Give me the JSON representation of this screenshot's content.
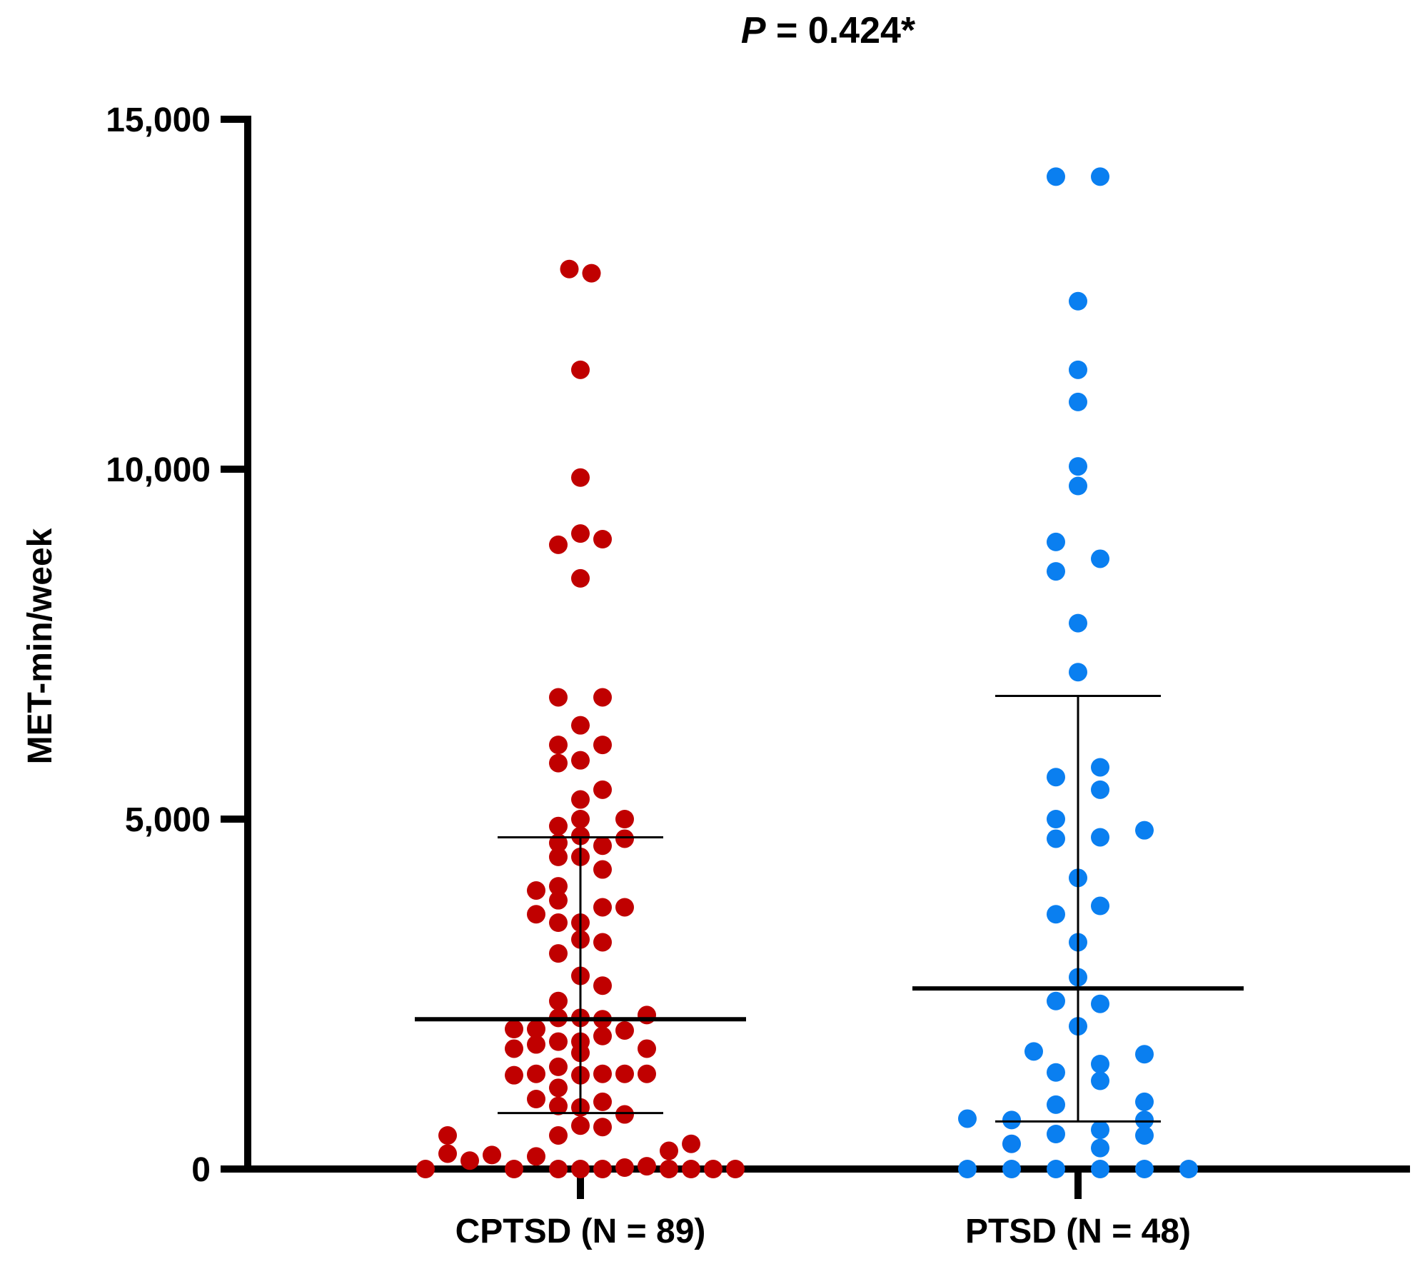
{
  "chart_data": {
    "type": "scatter",
    "subtype": "dot-plot",
    "title_italic": "P",
    "title_rest": " = 0.424*",
    "ylabel": "MET-min/week",
    "xlabel": "",
    "ylim": [
      0,
      15000
    ],
    "y_ticks": [
      0,
      5000,
      10000,
      15000
    ],
    "y_tick_labels": [
      "0",
      "5,000",
      "10,000",
      "15,000"
    ],
    "grid": false,
    "series": [
      {
        "name": "CPTSD",
        "label": "CPTSD (N = 89)",
        "color": "#c00000",
        "median": 2140,
        "q1": 800,
        "q3": 4740,
        "points": [
          {
            "y": 12860,
            "dx": -0.5
          },
          {
            "y": 12800,
            "dx": 0.5
          },
          {
            "y": 11420,
            "dx": 0
          },
          {
            "y": 9880,
            "dx": 0
          },
          {
            "y": 9080,
            "dx": 0
          },
          {
            "y": 9000,
            "dx": 1
          },
          {
            "y": 8920,
            "dx": -1
          },
          {
            "y": 8440,
            "dx": 0
          },
          {
            "y": 6740,
            "dx": -1
          },
          {
            "y": 6740,
            "dx": 1
          },
          {
            "y": 6340,
            "dx": 0
          },
          {
            "y": 6060,
            "dx": -1
          },
          {
            "y": 6060,
            "dx": 1
          },
          {
            "y": 5800,
            "dx": -1
          },
          {
            "y": 5840,
            "dx": 0
          },
          {
            "y": 5420,
            "dx": 1
          },
          {
            "y": 5280,
            "dx": 0
          },
          {
            "y": 5000,
            "dx": 2
          },
          {
            "y": 5000,
            "dx": 0
          },
          {
            "y": 4900,
            "dx": -1
          },
          {
            "y": 4760,
            "dx": 0
          },
          {
            "y": 4720,
            "dx": 2
          },
          {
            "y": 4660,
            "dx": -1
          },
          {
            "y": 4620,
            "dx": 1
          },
          {
            "y": 4460,
            "dx": -1
          },
          {
            "y": 4460,
            "dx": 0
          },
          {
            "y": 4280,
            "dx": 1
          },
          {
            "y": 4040,
            "dx": -1
          },
          {
            "y": 3980,
            "dx": -2
          },
          {
            "y": 3840,
            "dx": -1
          },
          {
            "y": 3740,
            "dx": 1
          },
          {
            "y": 3740,
            "dx": 2
          },
          {
            "y": 3640,
            "dx": -2
          },
          {
            "y": 3520,
            "dx": -1
          },
          {
            "y": 3520,
            "dx": 0
          },
          {
            "y": 3280,
            "dx": 0
          },
          {
            "y": 3240,
            "dx": 1
          },
          {
            "y": 3080,
            "dx": -1
          },
          {
            "y": 2760,
            "dx": 0
          },
          {
            "y": 2620,
            "dx": 1
          },
          {
            "y": 2400,
            "dx": -1
          },
          {
            "y": 2200,
            "dx": 3
          },
          {
            "y": 2160,
            "dx": -1
          },
          {
            "y": 2160,
            "dx": 0
          },
          {
            "y": 2140,
            "dx": 1
          },
          {
            "y": 2000,
            "dx": -2
          },
          {
            "y": 2000,
            "dx": -3
          },
          {
            "y": 1980,
            "dx": 2
          },
          {
            "y": 1900,
            "dx": 1
          },
          {
            "y": 1820,
            "dx": 0
          },
          {
            "y": 1820,
            "dx": -1
          },
          {
            "y": 1780,
            "dx": -2
          },
          {
            "y": 1720,
            "dx": -3
          },
          {
            "y": 1720,
            "dx": 3
          },
          {
            "y": 1660,
            "dx": 0
          },
          {
            "y": 1460,
            "dx": -1
          },
          {
            "y": 1360,
            "dx": 1
          },
          {
            "y": 1360,
            "dx": 2
          },
          {
            "y": 1360,
            "dx": -2
          },
          {
            "y": 1360,
            "dx": 3
          },
          {
            "y": 1340,
            "dx": -3
          },
          {
            "y": 1340,
            "dx": 0
          },
          {
            "y": 1160,
            "dx": -1
          },
          {
            "y": 1000,
            "dx": -2
          },
          {
            "y": 960,
            "dx": 1
          },
          {
            "y": 900,
            "dx": -1
          },
          {
            "y": 880,
            "dx": 0
          },
          {
            "y": 780,
            "dx": 2
          },
          {
            "y": 620,
            "dx": 0
          },
          {
            "y": 600,
            "dx": 1
          },
          {
            "y": 480,
            "dx": -1
          },
          {
            "y": 480,
            "dx": -6
          },
          {
            "y": 360,
            "dx": 5
          },
          {
            "y": 260,
            "dx": 4
          },
          {
            "y": 220,
            "dx": -6
          },
          {
            "y": 200,
            "dx": -4
          },
          {
            "y": 180,
            "dx": -2
          },
          {
            "y": 120,
            "dx": -5
          },
          {
            "y": 40,
            "dx": 3
          },
          {
            "y": 20,
            "dx": 2
          },
          {
            "y": 0,
            "dx": -7
          },
          {
            "y": 0,
            "dx": -3
          },
          {
            "y": 0,
            "dx": -1
          },
          {
            "y": 0,
            "dx": 0
          },
          {
            "y": 0,
            "dx": 1
          },
          {
            "y": 0,
            "dx": 4
          },
          {
            "y": 0,
            "dx": 5
          },
          {
            "y": 0,
            "dx": 6
          },
          {
            "y": 0,
            "dx": 7
          }
        ]
      },
      {
        "name": "PTSD",
        "label": "PTSD (N = 48)",
        "color": "#0a7ff0",
        "median": 2580,
        "q1": 680,
        "q3": 6760,
        "points": [
          {
            "y": 14180,
            "dx": -1
          },
          {
            "y": 14180,
            "dx": 1
          },
          {
            "y": 12400,
            "dx": 0
          },
          {
            "y": 11420,
            "dx": 0
          },
          {
            "y": 10960,
            "dx": 0
          },
          {
            "y": 10040,
            "dx": 0
          },
          {
            "y": 9760,
            "dx": 0
          },
          {
            "y": 8960,
            "dx": -1
          },
          {
            "y": 8720,
            "dx": 1
          },
          {
            "y": 8540,
            "dx": -1
          },
          {
            "y": 7800,
            "dx": 0
          },
          {
            "y": 7100,
            "dx": 0
          },
          {
            "y": 5740,
            "dx": 1
          },
          {
            "y": 5600,
            "dx": -1
          },
          {
            "y": 5420,
            "dx": 1
          },
          {
            "y": 5000,
            "dx": -1
          },
          {
            "y": 4840,
            "dx": 3
          },
          {
            "y": 4740,
            "dx": 1
          },
          {
            "y": 4720,
            "dx": -1
          },
          {
            "y": 4160,
            "dx": 0
          },
          {
            "y": 3760,
            "dx": 1
          },
          {
            "y": 3640,
            "dx": -1
          },
          {
            "y": 3240,
            "dx": 0
          },
          {
            "y": 2740,
            "dx": 0
          },
          {
            "y": 2400,
            "dx": -1
          },
          {
            "y": 2360,
            "dx": 1
          },
          {
            "y": 2040,
            "dx": 0
          },
          {
            "y": 1680,
            "dx": -2
          },
          {
            "y": 1640,
            "dx": 3
          },
          {
            "y": 1500,
            "dx": 1
          },
          {
            "y": 1380,
            "dx": -1
          },
          {
            "y": 1260,
            "dx": 1
          },
          {
            "y": 960,
            "dx": 3
          },
          {
            "y": 920,
            "dx": -1
          },
          {
            "y": 720,
            "dx": -5
          },
          {
            "y": 700,
            "dx": -3
          },
          {
            "y": 700,
            "dx": 3
          },
          {
            "y": 560,
            "dx": 1
          },
          {
            "y": 500,
            "dx": -1
          },
          {
            "y": 480,
            "dx": 3
          },
          {
            "y": 360,
            "dx": -3
          },
          {
            "y": 300,
            "dx": 1
          },
          {
            "y": 0,
            "dx": -5
          },
          {
            "y": 0,
            "dx": -3
          },
          {
            "y": 0,
            "dx": -1
          },
          {
            "y": 0,
            "dx": 1
          },
          {
            "y": 0,
            "dx": 3
          },
          {
            "y": 0,
            "dx": 5
          }
        ]
      }
    ]
  }
}
